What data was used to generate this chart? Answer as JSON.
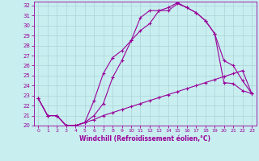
{
  "xlabel": "Windchill (Refroidissement éolien,°C)",
  "bg_color": "#c8eef0",
  "grid_color": "#b0d8da",
  "line_color": "#990099",
  "xlim": [
    -0.5,
    23.5
  ],
  "ylim": [
    20,
    32.4
  ],
  "yticks": [
    20,
    21,
    22,
    23,
    24,
    25,
    26,
    27,
    28,
    29,
    30,
    31,
    32
  ],
  "xticks": [
    0,
    1,
    2,
    3,
    4,
    5,
    6,
    7,
    8,
    9,
    10,
    11,
    12,
    13,
    14,
    15,
    16,
    17,
    18,
    19,
    20,
    21,
    22,
    23
  ],
  "line1_x": [
    0,
    1,
    2,
    3,
    4,
    5,
    6,
    7,
    8,
    9,
    10,
    11,
    12,
    13,
    14,
    15,
    16,
    17,
    18,
    19,
    20,
    21,
    22,
    23
  ],
  "line1_y": [
    22.7,
    21.0,
    21.0,
    20.0,
    20.0,
    20.3,
    20.6,
    21.0,
    21.3,
    21.6,
    21.9,
    22.2,
    22.5,
    22.8,
    23.1,
    23.4,
    23.7,
    24.0,
    24.3,
    24.6,
    24.9,
    25.2,
    25.5,
    23.2
  ],
  "line2_x": [
    0,
    1,
    2,
    3,
    4,
    5,
    6,
    7,
    8,
    9,
    10,
    11,
    12,
    13,
    14,
    15,
    16,
    17,
    18,
    19,
    20,
    21,
    22,
    23
  ],
  "line2_y": [
    22.7,
    21.0,
    21.0,
    20.0,
    20.0,
    20.3,
    21.0,
    22.2,
    24.8,
    26.5,
    28.5,
    29.5,
    30.2,
    31.5,
    31.5,
    32.2,
    31.8,
    31.3,
    30.5,
    29.2,
    24.3,
    24.2,
    23.5,
    23.2
  ],
  "line3_x": [
    0,
    1,
    2,
    3,
    4,
    5,
    6,
    7,
    8,
    9,
    10,
    11,
    12,
    13,
    14,
    15,
    16,
    17,
    18,
    19,
    20,
    21,
    22,
    23
  ],
  "line3_y": [
    22.7,
    21.0,
    21.0,
    20.0,
    20.0,
    20.3,
    22.5,
    25.2,
    26.8,
    27.5,
    28.5,
    30.8,
    31.5,
    31.5,
    31.8,
    32.3,
    31.8,
    31.3,
    30.5,
    29.2,
    26.5,
    26.0,
    24.5,
    23.2
  ]
}
